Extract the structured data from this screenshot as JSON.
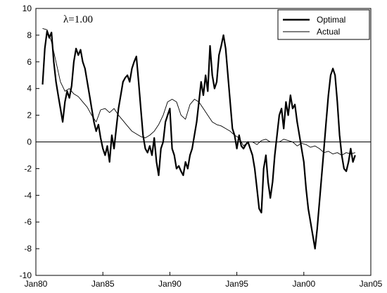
{
  "chart_data": {
    "type": "line",
    "title": "",
    "xlabel": "",
    "ylabel": "",
    "annotation": "λ=1.00",
    "x_range": [
      "1980-01",
      "2005-01"
    ],
    "xticks": [
      {
        "date": "1980-01",
        "label": "Jan80"
      },
      {
        "date": "1985-01",
        "label": "Jan85"
      },
      {
        "date": "1990-01",
        "label": "Jan90"
      },
      {
        "date": "1995-01",
        "label": "Jan95"
      },
      {
        "date": "2000-01",
        "label": "Jan00"
      },
      {
        "date": "2005-01",
        "label": "Jan05"
      }
    ],
    "ylim": [
      -10,
      10
    ],
    "yticks": [
      -10,
      -8,
      -6,
      -4,
      -2,
      0,
      2,
      4,
      6,
      8,
      10
    ],
    "grid": false,
    "zero_line": true,
    "legend_position": "top-right",
    "series": [
      {
        "name": "Optimal",
        "line_style": "thick",
        "color": "#000000",
        "points": [
          [
            "1980-07",
            4.3
          ],
          [
            "1980-09",
            7.0
          ],
          [
            "1980-11",
            8.3
          ],
          [
            "1981-01",
            7.8
          ],
          [
            "1981-03",
            8.2
          ],
          [
            "1981-05",
            6.0
          ],
          [
            "1981-07",
            4.5
          ],
          [
            "1981-09",
            3.5
          ],
          [
            "1981-11",
            2.5
          ],
          [
            "1982-01",
            1.5
          ],
          [
            "1982-03",
            3.0
          ],
          [
            "1982-05",
            3.8
          ],
          [
            "1982-07",
            3.3
          ],
          [
            "1982-09",
            4.2
          ],
          [
            "1982-11",
            6.0
          ],
          [
            "1983-01",
            7.0
          ],
          [
            "1983-03",
            6.5
          ],
          [
            "1983-05",
            6.9
          ],
          [
            "1983-07",
            6.0
          ],
          [
            "1983-09",
            5.5
          ],
          [
            "1983-11",
            4.5
          ],
          [
            "1984-01",
            3.5
          ],
          [
            "1984-03",
            2.5
          ],
          [
            "1984-05",
            1.5
          ],
          [
            "1984-07",
            0.8
          ],
          [
            "1984-09",
            1.3
          ],
          [
            "1984-11",
            0.3
          ],
          [
            "1985-01",
            -0.5
          ],
          [
            "1985-03",
            -1.0
          ],
          [
            "1985-05",
            -0.3
          ],
          [
            "1985-07",
            -1.5
          ],
          [
            "1985-09",
            0.5
          ],
          [
            "1985-11",
            -0.5
          ],
          [
            "1986-01",
            1.0
          ],
          [
            "1986-03",
            2.5
          ],
          [
            "1986-05",
            3.5
          ],
          [
            "1986-07",
            4.5
          ],
          [
            "1986-09",
            4.8
          ],
          [
            "1986-11",
            5.0
          ],
          [
            "1987-01",
            4.5
          ],
          [
            "1987-03",
            5.5
          ],
          [
            "1987-05",
            6.0
          ],
          [
            "1987-07",
            6.4
          ],
          [
            "1987-09",
            4.5
          ],
          [
            "1987-11",
            2.5
          ],
          [
            "1988-01",
            0.5
          ],
          [
            "1988-03",
            -0.5
          ],
          [
            "1988-05",
            -0.8
          ],
          [
            "1988-07",
            -0.3
          ],
          [
            "1988-09",
            -1.0
          ],
          [
            "1988-11",
            0.3
          ],
          [
            "1989-01",
            -1.5
          ],
          [
            "1989-03",
            -2.5
          ],
          [
            "1989-05",
            -0.5
          ],
          [
            "1989-07",
            0.0
          ],
          [
            "1989-09",
            1.5
          ],
          [
            "1989-11",
            2.0
          ],
          [
            "1990-01",
            2.5
          ],
          [
            "1990-03",
            -0.5
          ],
          [
            "1990-05",
            -1.0
          ],
          [
            "1990-07",
            -2.0
          ],
          [
            "1990-09",
            -1.8
          ],
          [
            "1990-11",
            -2.2
          ],
          [
            "1991-01",
            -2.5
          ],
          [
            "1991-03",
            -1.5
          ],
          [
            "1991-05",
            -2.0
          ],
          [
            "1991-07",
            -1.0
          ],
          [
            "1991-09",
            -0.5
          ],
          [
            "1991-11",
            0.5
          ],
          [
            "1992-01",
            1.5
          ],
          [
            "1992-03",
            3.0
          ],
          [
            "1992-05",
            4.5
          ],
          [
            "1992-07",
            3.5
          ],
          [
            "1992-09",
            5.0
          ],
          [
            "1992-11",
            3.8
          ],
          [
            "1993-01",
            7.2
          ],
          [
            "1993-03",
            5.0
          ],
          [
            "1993-05",
            4.0
          ],
          [
            "1993-07",
            4.5
          ],
          [
            "1993-09",
            6.5
          ],
          [
            "1993-11",
            7.2
          ],
          [
            "1994-01",
            8.0
          ],
          [
            "1994-03",
            7.0
          ],
          [
            "1994-05",
            5.0
          ],
          [
            "1994-07",
            3.0
          ],
          [
            "1994-09",
            1.0
          ],
          [
            "1994-11",
            0.5
          ],
          [
            "1995-01",
            -0.5
          ],
          [
            "1995-03",
            0.5
          ],
          [
            "1995-05",
            -0.3
          ],
          [
            "1995-07",
            -0.5
          ],
          [
            "1995-09",
            -0.2
          ],
          [
            "1995-11",
            0.0
          ],
          [
            "1996-01",
            -0.5
          ],
          [
            "1996-03",
            -1.0
          ],
          [
            "1996-05",
            -2.0
          ],
          [
            "1996-07",
            -3.5
          ],
          [
            "1996-09",
            -5.0
          ],
          [
            "1996-11",
            -5.3
          ],
          [
            "1997-01",
            -2.0
          ],
          [
            "1997-03",
            -1.0
          ],
          [
            "1997-05",
            -3.0
          ],
          [
            "1997-07",
            -4.2
          ],
          [
            "1997-09",
            -3.0
          ],
          [
            "1997-11",
            -1.0
          ],
          [
            "1998-01",
            0.5
          ],
          [
            "1998-03",
            2.0
          ],
          [
            "1998-05",
            2.5
          ],
          [
            "1998-07",
            1.0
          ],
          [
            "1998-09",
            3.0
          ],
          [
            "1998-11",
            2.0
          ],
          [
            "1999-01",
            3.5
          ],
          [
            "1999-03",
            2.5
          ],
          [
            "1999-05",
            2.8
          ],
          [
            "1999-07",
            1.5
          ],
          [
            "1999-09",
            0.5
          ],
          [
            "1999-11",
            -0.5
          ],
          [
            "2000-01",
            -1.5
          ],
          [
            "2000-03",
            -3.5
          ],
          [
            "2000-05",
            -5.0
          ],
          [
            "2000-07",
            -6.0
          ],
          [
            "2000-09",
            -7.0
          ],
          [
            "2000-11",
            -8.0
          ],
          [
            "2001-01",
            -6.5
          ],
          [
            "2001-03",
            -4.5
          ],
          [
            "2001-05",
            -2.5
          ],
          [
            "2001-07",
            -0.5
          ],
          [
            "2001-09",
            1.5
          ],
          [
            "2001-11",
            3.5
          ],
          [
            "2002-01",
            5.0
          ],
          [
            "2002-03",
            5.5
          ],
          [
            "2002-05",
            5.0
          ],
          [
            "2002-07",
            3.0
          ],
          [
            "2002-09",
            0.5
          ],
          [
            "2002-11",
            -1.0
          ],
          [
            "2003-01",
            -2.0
          ],
          [
            "2003-03",
            -2.2
          ],
          [
            "2003-05",
            -1.5
          ],
          [
            "2003-07",
            -0.5
          ],
          [
            "2003-09",
            -1.5
          ],
          [
            "2003-11",
            -1.0
          ]
        ]
      },
      {
        "name": "Actual",
        "line_style": "thin",
        "color": "#000000",
        "points": [
          [
            "1980-07",
            8.5
          ],
          [
            "1980-11",
            8.4
          ],
          [
            "1981-03",
            7.5
          ],
          [
            "1981-07",
            6.0
          ],
          [
            "1981-11",
            4.5
          ],
          [
            "1982-03",
            3.8
          ],
          [
            "1982-07",
            4.0
          ],
          [
            "1982-11",
            3.6
          ],
          [
            "1983-03",
            3.4
          ],
          [
            "1983-07",
            3.0
          ],
          [
            "1983-11",
            2.6
          ],
          [
            "1984-03",
            2.0
          ],
          [
            "1984-07",
            1.5
          ],
          [
            "1984-11",
            2.4
          ],
          [
            "1985-03",
            2.5
          ],
          [
            "1985-07",
            2.2
          ],
          [
            "1985-11",
            2.5
          ],
          [
            "1986-03",
            2.0
          ],
          [
            "1986-07",
            1.6
          ],
          [
            "1986-11",
            1.2
          ],
          [
            "1987-03",
            0.8
          ],
          [
            "1987-07",
            0.6
          ],
          [
            "1987-11",
            0.4
          ],
          [
            "1988-03",
            0.3
          ],
          [
            "1988-07",
            0.5
          ],
          [
            "1988-11",
            0.8
          ],
          [
            "1989-03",
            1.3
          ],
          [
            "1989-07",
            2.0
          ],
          [
            "1989-11",
            3.0
          ],
          [
            "1990-03",
            3.2
          ],
          [
            "1990-07",
            3.0
          ],
          [
            "1990-11",
            2.0
          ],
          [
            "1991-03",
            1.7
          ],
          [
            "1991-07",
            2.8
          ],
          [
            "1991-11",
            3.2
          ],
          [
            "1992-03",
            3.0
          ],
          [
            "1992-07",
            2.5
          ],
          [
            "1992-11",
            2.0
          ],
          [
            "1993-03",
            1.5
          ],
          [
            "1993-07",
            1.3
          ],
          [
            "1993-11",
            1.2
          ],
          [
            "1994-03",
            1.0
          ],
          [
            "1994-07",
            0.8
          ],
          [
            "1994-11",
            0.5
          ],
          [
            "1995-03",
            0.3
          ],
          [
            "1995-07",
            -0.3
          ],
          [
            "1995-11",
            0.0
          ],
          [
            "1996-03",
            0.0
          ],
          [
            "1996-07",
            -0.2
          ],
          [
            "1996-11",
            0.1
          ],
          [
            "1997-03",
            0.2
          ],
          [
            "1997-07",
            0.0
          ],
          [
            "1997-11",
            0.0
          ],
          [
            "1998-03",
            0.0
          ],
          [
            "1998-07",
            0.2
          ],
          [
            "1998-11",
            0.1
          ],
          [
            "1999-03",
            0.0
          ],
          [
            "1999-07",
            -0.3
          ],
          [
            "1999-11",
            -0.1
          ],
          [
            "2000-03",
            -0.2
          ],
          [
            "2000-07",
            -0.4
          ],
          [
            "2000-11",
            -0.3
          ],
          [
            "2001-03",
            -0.5
          ],
          [
            "2001-07",
            -0.8
          ],
          [
            "2001-11",
            -0.7
          ],
          [
            "2002-03",
            -0.9
          ],
          [
            "2002-07",
            -0.8
          ],
          [
            "2002-11",
            -1.0
          ],
          [
            "2003-03",
            -0.8
          ],
          [
            "2003-07",
            -0.9
          ],
          [
            "2003-11",
            -0.8
          ]
        ]
      }
    ]
  }
}
